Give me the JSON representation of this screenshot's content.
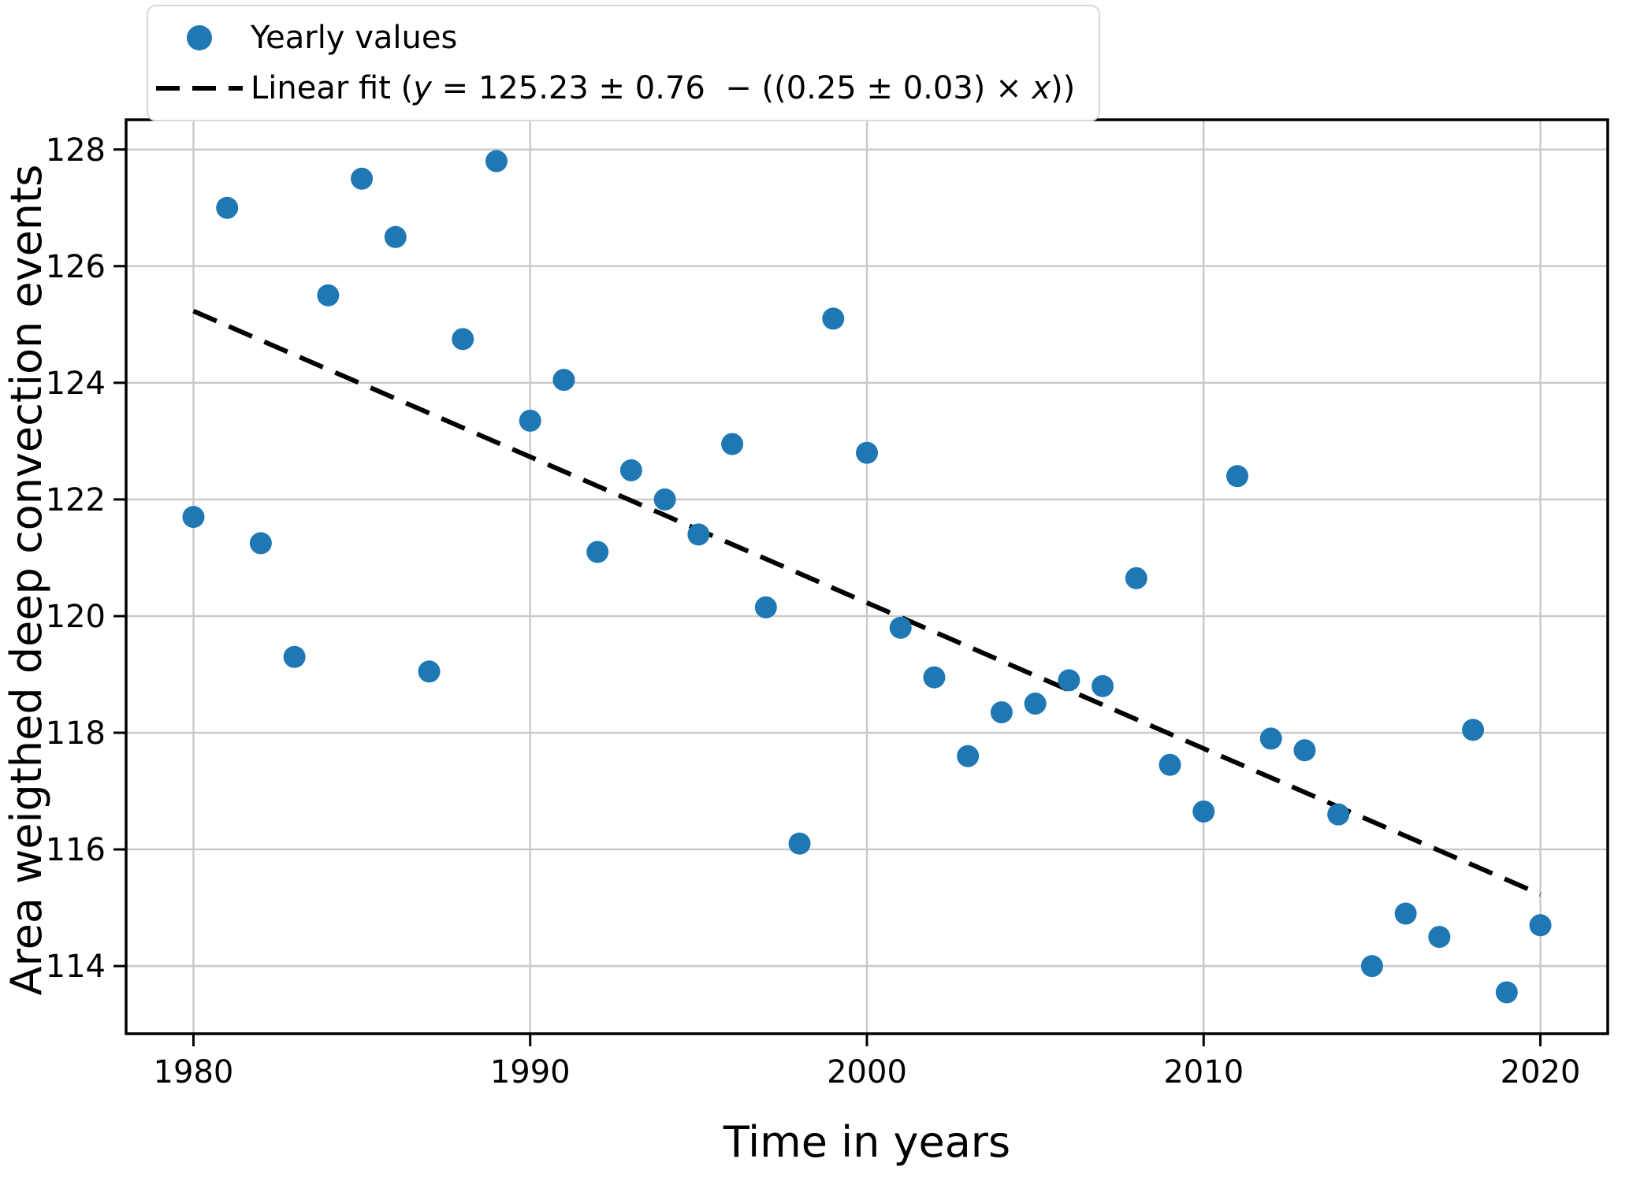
{
  "figure": {
    "background": "#ffffff"
  },
  "chart_data": {
    "type": "scatter",
    "title": "",
    "xlabel": "Time in years",
    "ylabel": "Area weigthed deep convection events",
    "xlim": [
      1978,
      2022
    ],
    "ylim": [
      112.84,
      128.51
    ],
    "xticks": [
      1980,
      1990,
      2000,
      2010,
      2020
    ],
    "yticks": [
      114,
      116,
      118,
      120,
      122,
      124,
      126,
      128
    ],
    "grid": true,
    "colors": {
      "scatter": "#1f77b4",
      "fit_line": "#000000",
      "grid": "#c9c9c9"
    },
    "legend": {
      "position": "top-left-above-axes",
      "entries": [
        {
          "marker": "dot",
          "label": "Yearly values",
          "label_segments": [
            {
              "text": "Yearly values",
              "italic": false
            }
          ]
        },
        {
          "marker": "dashed-line",
          "label": "Linear fit (y = 125.23 ± 0.76  − ((0.25 ± 0.03) × x))",
          "label_segments": [
            {
              "text": "Linear fit (",
              "italic": false
            },
            {
              "text": "y",
              "italic": true
            },
            {
              "text": " = 125.23 ± 0.76  − ((0.25 ± 0.03) × ",
              "italic": false
            },
            {
              "text": "x",
              "italic": true
            },
            {
              "text": "))",
              "italic": false
            }
          ]
        }
      ]
    },
    "series": [
      {
        "name": "Yearly values",
        "type": "scatter",
        "color": "#1f77b4",
        "x": [
          1980,
          1981,
          1982,
          1983,
          1984,
          1985,
          1986,
          1987,
          1988,
          1989,
          1990,
          1991,
          1992,
          1993,
          1994,
          1995,
          1996,
          1997,
          1998,
          1999,
          2000,
          2001,
          2002,
          2003,
          2004,
          2005,
          2006,
          2007,
          2008,
          2009,
          2010,
          2011,
          2012,
          2013,
          2014,
          2015,
          2016,
          2017,
          2018,
          2019,
          2020
        ],
        "y": [
          121.7,
          127.0,
          121.25,
          119.3,
          125.5,
          127.5,
          126.5,
          119.05,
          124.75,
          127.8,
          123.35,
          124.05,
          121.1,
          122.5,
          122.0,
          121.4,
          122.95,
          120.15,
          116.1,
          125.1,
          122.8,
          119.8,
          118.95,
          117.6,
          118.35,
          118.5,
          118.9,
          118.8,
          120.65,
          117.45,
          116.65,
          122.4,
          117.9,
          117.7,
          116.6,
          114.0,
          114.9,
          114.5,
          118.05,
          113.55,
          114.7
        ]
      },
      {
        "name": "Linear fit",
        "type": "line",
        "style": "dashed",
        "color": "#000000",
        "fit": {
          "intercept": 125.23,
          "intercept_err": 0.76,
          "slope": -0.25,
          "slope_err": 0.03,
          "x_reference": 1980
        },
        "x_range": [
          1980,
          2020
        ]
      }
    ]
  }
}
